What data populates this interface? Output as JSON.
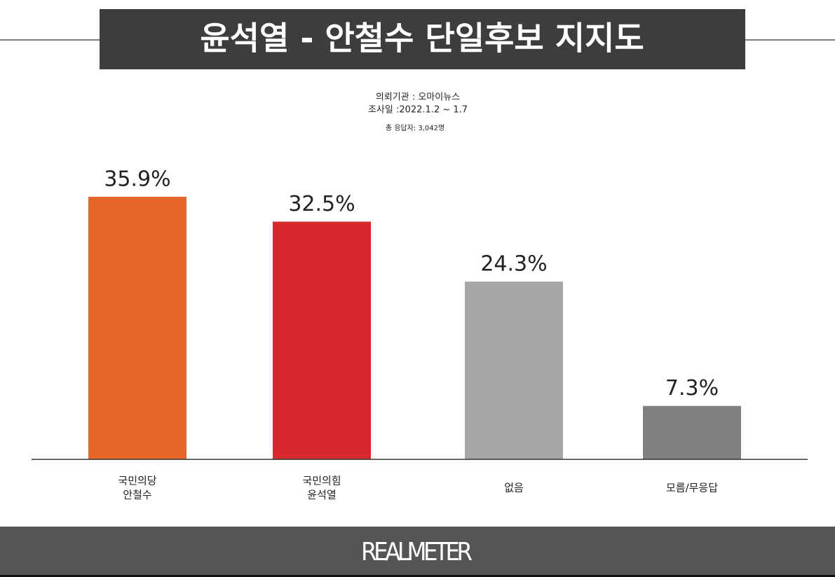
{
  "chart_data": {
    "type": "bar",
    "title": "윤석열 - 안철수 단일후보 지지도",
    "subtitle": [
      "의뢰기관 : 오마이뉴스",
      "조사일 :2022.1.2 ~ 1.7"
    ],
    "note": "총 응답자: 3,042명",
    "categories": [
      [
        "국민의당",
        "안철수"
      ],
      [
        "국민의힘",
        "윤석열"
      ],
      [
        "없음"
      ],
      [
        "모름/무응답"
      ]
    ],
    "values": [
      35.9,
      32.5,
      24.3,
      7.3
    ],
    "value_labels": [
      "35.9%",
      "32.5%",
      "24.3%",
      "7.3%"
    ],
    "colors": [
      "#e5652a",
      "#d6282e",
      "#a6a6a6",
      "#808080"
    ],
    "footer": "REALMETER"
  }
}
